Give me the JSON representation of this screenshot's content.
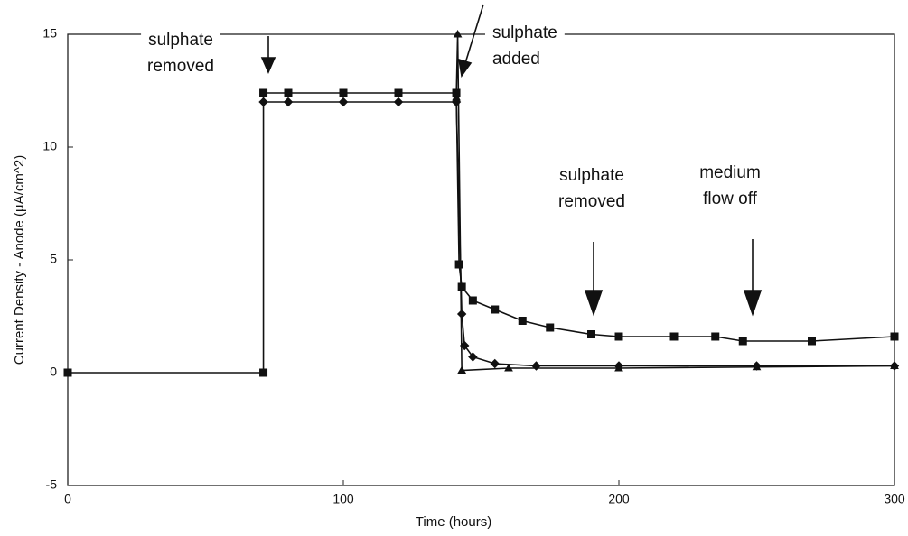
{
  "chart_data": {
    "type": "line",
    "x_label": "Time (hours)",
    "y_label": "Current Density - Anode (µA/cm^2)",
    "xlim": [
      0,
      300
    ],
    "xticks": [
      0,
      100,
      200,
      300
    ],
    "ylim": [
      -5,
      15
    ],
    "yticks": [
      -5,
      0,
      5,
      10,
      15
    ],
    "annotations": [
      [
        "sulphate",
        "removed"
      ],
      [
        "sulphate",
        "added"
      ],
      [
        "sulphate",
        "removed"
      ],
      [
        "medium",
        "flow off"
      ]
    ],
    "series": [
      {
        "color": "#111111",
        "marker": "square",
        "x": [
          0,
          71,
          71,
          80,
          100,
          120,
          141,
          142,
          143,
          147,
          155,
          165,
          175,
          190,
          200,
          220,
          235,
          245,
          270,
          300
        ],
        "values": [
          0,
          0,
          12.4,
          12.4,
          12.4,
          12.4,
          12.4,
          4.8,
          3.8,
          3.2,
          2.8,
          2.3,
          2.0,
          1.7,
          1.6,
          1.6,
          1.6,
          1.4,
          1.4,
          1.6
        ]
      },
      {
        "color": "#111111",
        "marker": "diamond",
        "x": [
          71,
          80,
          100,
          120,
          141,
          143,
          144,
          147,
          155,
          170,
          200,
          250,
          300
        ],
        "values": [
          12.0,
          12.0,
          12.0,
          12.0,
          12.0,
          2.6,
          1.2,
          0.7,
          0.4,
          0.3,
          0.3,
          0.3,
          0.3
        ]
      },
      {
        "color": "#111111",
        "marker": "triangle",
        "x": [
          141,
          141.5,
          143,
          160,
          200,
          250,
          300
        ],
        "values": [
          12.2,
          15,
          0.1,
          0.2,
          0.2,
          0.25,
          0.3
        ]
      }
    ]
  }
}
